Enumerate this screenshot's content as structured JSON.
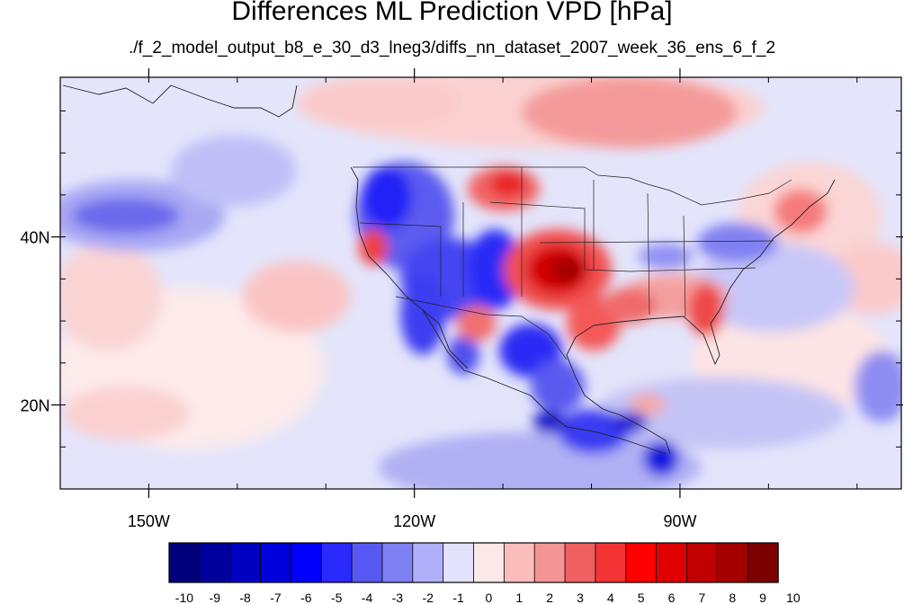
{
  "header": {
    "title": "Differences ML Prediction VPD [hPa]",
    "subtitle": "./f_2_model_output_b8_e_30_d3_lneg3/diffs_nn_dataset_2007_week_36_ens_6_f_2"
  },
  "map": {
    "lon_range": [
      -160,
      -65
    ],
    "lat_range": [
      10,
      59
    ],
    "lon_ticks": [
      {
        "value": -150,
        "label": "150W"
      },
      {
        "value": -120,
        "label": "120W"
      },
      {
        "value": -90,
        "label": "90W"
      }
    ],
    "lat_ticks": [
      {
        "value": 40,
        "label": "40N"
      },
      {
        "value": 20,
        "label": "20N"
      }
    ]
  },
  "colorbar": {
    "labels": [
      "-10",
      "-9",
      "-8",
      "-7",
      "-6",
      "-5",
      "-4",
      "-3",
      "-2",
      "-1",
      "0",
      "1",
      "2",
      "3",
      "4",
      "5",
      "6",
      "7",
      "8",
      "9",
      "10"
    ],
    "colors": [
      "#00007a",
      "#00009c",
      "#0000c0",
      "#0000dd",
      "#0000ff",
      "#2a2aff",
      "#5858f2",
      "#8080f5",
      "#b0b0fa",
      "#e2e2fc",
      "#fde8e8",
      "#fbbcbc",
      "#f59494",
      "#f06060",
      "#f23434",
      "#ff0000",
      "#e00000",
      "#c00000",
      "#a50000",
      "#7d0000"
    ]
  }
}
